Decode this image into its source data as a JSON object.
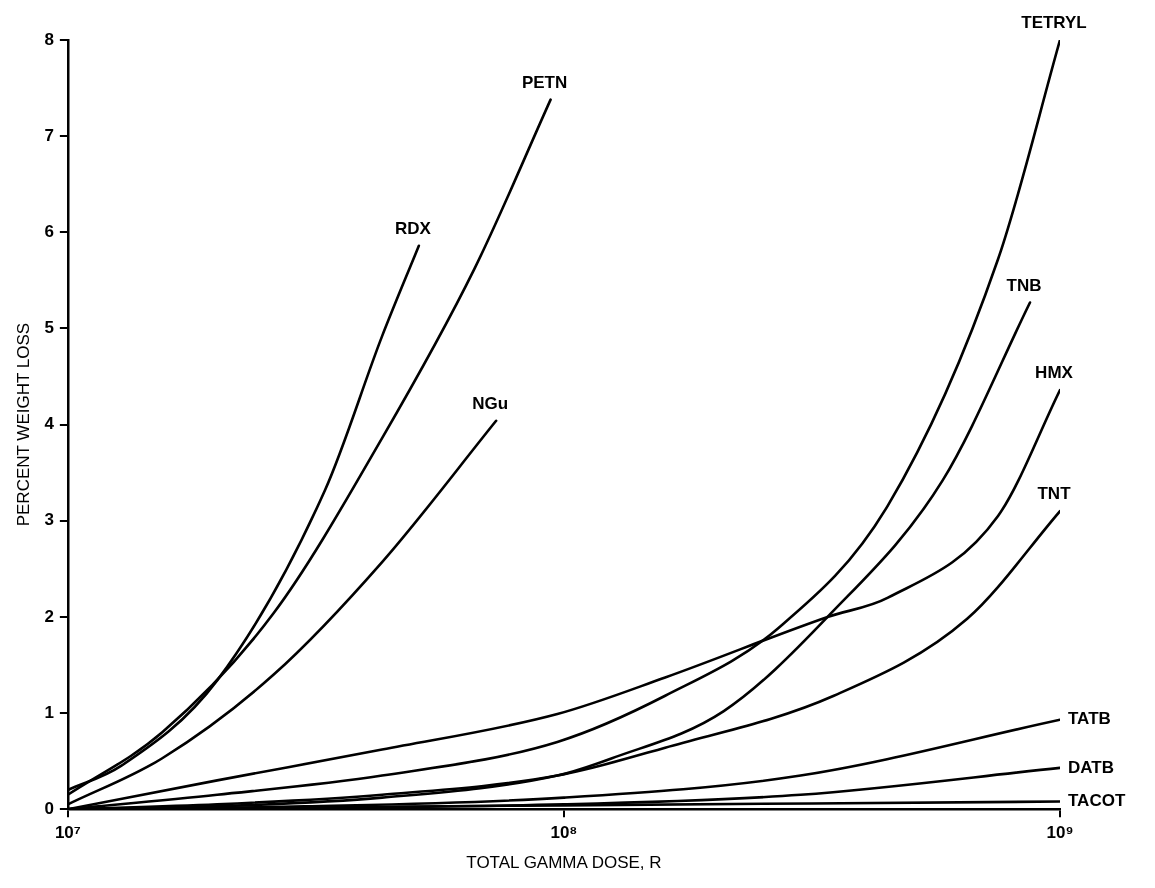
{
  "chart_data": {
    "type": "line",
    "xlabel": "TOTAL GAMMA DOSE, R",
    "ylabel": "PERCENT WEIGHT LOSS",
    "log": "x",
    "xlim": [
      10000000,
      1000000000
    ],
    "xticks": [
      {
        "value": 10000000,
        "label": "10⁷"
      },
      {
        "value": 100000000,
        "label": "10⁸"
      },
      {
        "value": 1000000000,
        "label": "10⁹"
      }
    ],
    "ylim": [
      0,
      8
    ],
    "yticks": [
      0,
      1,
      2,
      3,
      4,
      5,
      6,
      7,
      8
    ],
    "grid": false,
    "legend": false,
    "marker": "none",
    "line_style": "solid",
    "series": [
      {
        "name": "RDX",
        "color": "#000000",
        "x": [
          10000000,
          12800000,
          20000000,
          33000000,
          43000000,
          51000000
        ],
        "values": [
          0.2,
          0.45,
          1.34,
          3.32,
          4.92,
          5.86
        ]
      },
      {
        "name": "PETN",
        "color": "#000000",
        "x": [
          10000000,
          15500000,
          26000000,
          43000000,
          66000000,
          94000000
        ],
        "values": [
          0.15,
          0.8,
          2.04,
          3.86,
          5.62,
          7.38
        ]
      },
      {
        "name": "NGu",
        "color": "#000000",
        "x": [
          10000000,
          15500000,
          26000000,
          43000000,
          73000000
        ],
        "values": [
          0.05,
          0.53,
          1.4,
          2.57,
          4.04
        ]
      },
      {
        "name": "TETRYL",
        "color": "#000000",
        "x": [
          10000000,
          20000000,
          43000000,
          97000000,
          160000000,
          270000000,
          450000000,
          750000000,
          1000000000
        ],
        "values": [
          0,
          0.15,
          0.35,
          0.7,
          1.18,
          1.88,
          3.16,
          5.72,
          8
        ]
      },
      {
        "name": "TNB",
        "color": "#000000",
        "x": [
          10000000,
          20000000,
          43000000,
          97000000,
          125000000,
          210000000,
          340000000,
          580000000,
          870000000
        ],
        "values": [
          0,
          0.03,
          0.12,
          0.35,
          0.53,
          1.02,
          2.0,
          3.42,
          5.27
        ]
      },
      {
        "name": "HMX",
        "color": "#000000",
        "x": [
          10000000,
          20000000,
          43000000,
          97000000,
          160000000,
          340000000,
          450000000,
          750000000,
          1000000000
        ],
        "values": [
          0,
          0.3,
          0.62,
          0.99,
          1.37,
          2.0,
          2.2,
          3.05,
          4.36
        ]
      },
      {
        "name": "TNT",
        "color": "#000000",
        "x": [
          10000000,
          20000000,
          43000000,
          97000000,
          160000000,
          350000000,
          650000000,
          1000000000
        ],
        "values": [
          0,
          0.05,
          0.15,
          0.35,
          0.64,
          1.18,
          1.98,
          3.1
        ]
      },
      {
        "name": "TATB",
        "color": "#000000",
        "x": [
          10000000,
          30000000,
          100000000,
          300000000,
          1000000000
        ],
        "values": [
          0,
          0.03,
          0.12,
          0.35,
          0.93
        ]
      },
      {
        "name": "DATB",
        "color": "#000000",
        "x": [
          10000000,
          100000000,
          300000000,
          1000000000
        ],
        "values": [
          0,
          0.05,
          0.15,
          0.43
        ]
      },
      {
        "name": "TACOT",
        "color": "#000000",
        "x": [
          10000000,
          100000000,
          1000000000
        ],
        "values": [
          0,
          0.04,
          0.08
        ]
      }
    ]
  }
}
